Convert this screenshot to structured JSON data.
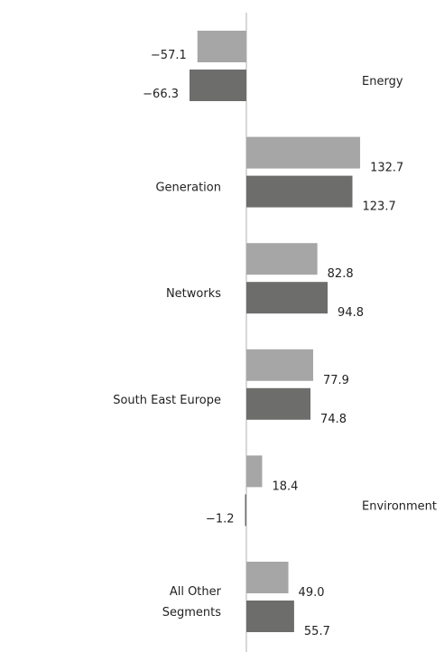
{
  "chart_data": {
    "type": "bar",
    "orientation": "horizontal",
    "categories": [
      "Energy",
      "Generation",
      "Networks",
      "South East Europe",
      "Environment",
      "All Other Segments"
    ],
    "category_lines": [
      [
        "Energy"
      ],
      [
        "Generation"
      ],
      [
        "Networks"
      ],
      [
        "South East Europe"
      ],
      [
        "Environment"
      ],
      [
        "All Other",
        "Segments"
      ]
    ],
    "series": [
      {
        "name": "",
        "color": "#a6a6a6",
        "values": [
          -57.1,
          132.7,
          82.8,
          77.9,
          18.4,
          49.0
        ],
        "labels": [
          "−57.1",
          "132.7",
          "82.8",
          "77.9",
          "18.4",
          "49.0"
        ]
      },
      {
        "name": "",
        "color": "#6d6d6c",
        "values": [
          -66.3,
          123.7,
          94.8,
          74.8,
          -1.2,
          55.7
        ],
        "labels": [
          "−66.3",
          "123.7",
          "94.8",
          "74.8",
          "−1.2",
          "55.7"
        ]
      }
    ],
    "xlim": [
      -80,
      160
    ],
    "grid": false,
    "legend": "none",
    "axis_color": "#b0b0b0"
  }
}
